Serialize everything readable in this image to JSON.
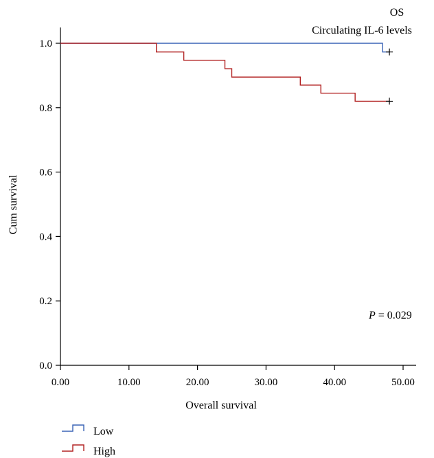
{
  "chart_data": {
    "type": "line",
    "subtype": "kaplan-meier",
    "title": "OS",
    "subtitle": "Circulating IL-6 levels",
    "xlabel": "Overall survival",
    "ylabel": "Cum survival",
    "xlim": [
      0,
      50
    ],
    "ylim": [
      0,
      1.0
    ],
    "xticks": [
      "0.00",
      "10.00",
      "20.00",
      "30.00",
      "40.00",
      "50.00"
    ],
    "yticks": [
      "0.0",
      "0.2",
      "0.4",
      "0.6",
      "0.8",
      "1.0"
    ],
    "grid": false,
    "legend_position": "bottom-left",
    "annotation": {
      "italic": "P",
      "text": " = 0.029"
    },
    "series": [
      {
        "name": "Low",
        "color": "#3a63b5",
        "steps": [
          [
            0,
            1.0
          ],
          [
            47,
            0.973
          ]
        ],
        "end_x": 48,
        "censored": [
          [
            48,
            0.973
          ]
        ]
      },
      {
        "name": "High",
        "color": "#b22222",
        "steps": [
          [
            0,
            1.0
          ],
          [
            14,
            0.973
          ],
          [
            18,
            0.947
          ],
          [
            24,
            0.921
          ],
          [
            25,
            0.895
          ],
          [
            35,
            0.87
          ],
          [
            38,
            0.845
          ],
          [
            43,
            0.82
          ]
        ],
        "end_x": 48,
        "censored": [
          [
            48,
            0.82
          ]
        ]
      }
    ]
  }
}
